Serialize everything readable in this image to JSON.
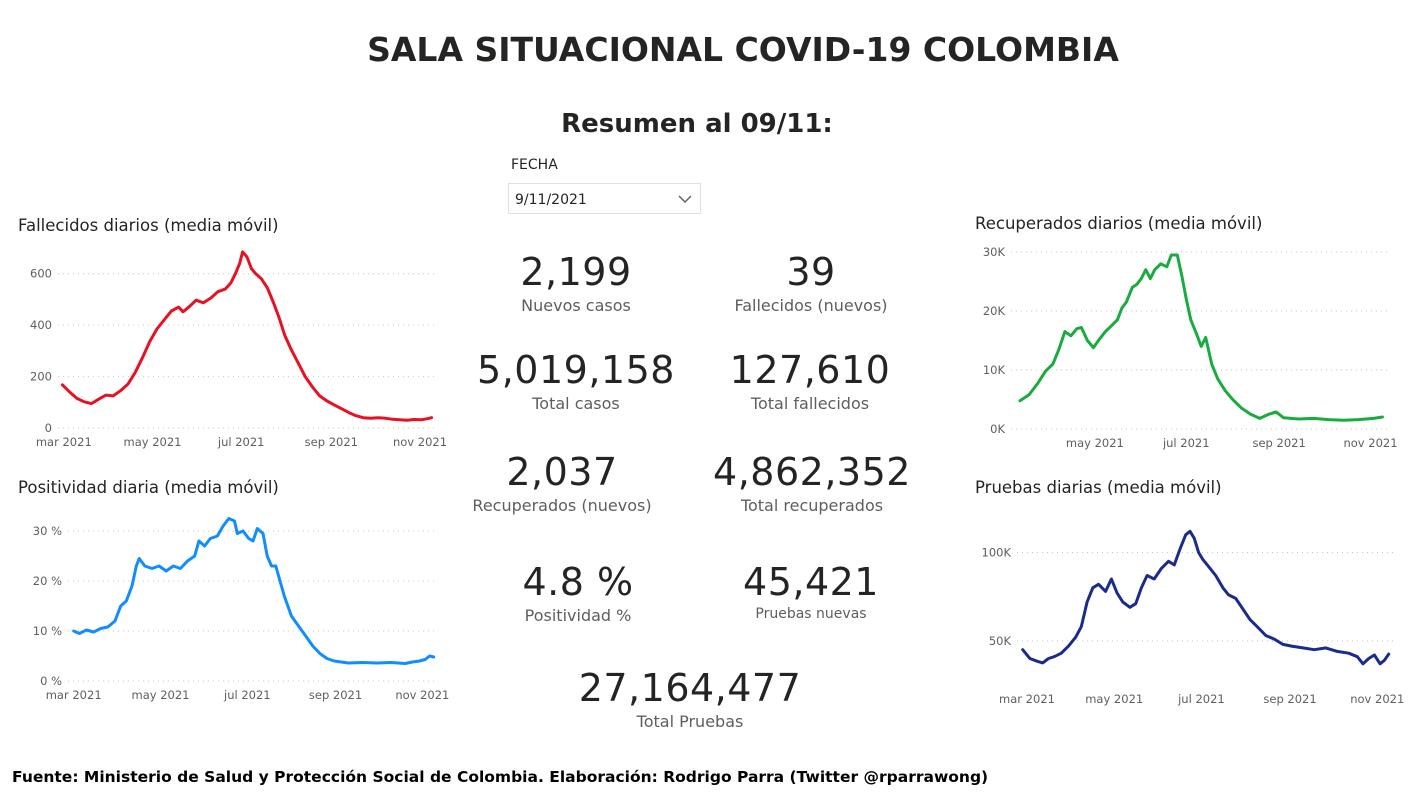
{
  "header": {
    "title": "SALA SITUACIONAL COVID-19 COLOMBIA",
    "subtitle": "Resumen al 09/11:"
  },
  "filter": {
    "label": "FECHA",
    "value": "9/11/2021",
    "icon": "chevron-down-icon"
  },
  "kpis": {
    "nuevos_casos": {
      "value": "2,199",
      "label": "Nuevos casos"
    },
    "fallecidos_nuevos": {
      "value": "39",
      "label": "Fallecidos (nuevos)"
    },
    "total_casos": {
      "value": "5,019,158",
      "label": "Total casos"
    },
    "total_fallecidos": {
      "value": "127,610",
      "label": "Total fallecidos"
    },
    "recuperados_nuevos": {
      "value": "2,037",
      "label": "Recuperados (nuevos)"
    },
    "total_recuperados": {
      "value": "4,862,352",
      "label": "Total recuperados"
    },
    "positividad": {
      "value": "4.8 %",
      "label": "Positividad %"
    },
    "pruebas_nuevas": {
      "value": "45,421",
      "label": "Pruebas nuevas"
    },
    "total_pruebas": {
      "value": "27,164,477",
      "label": "Total Pruebas"
    }
  },
  "footer": {
    "source": "Fuente: Ministerio de Salud y Protección Social de Colombia. Elaboración: Rodrigo Parra (Twitter @rparrawong)"
  },
  "chart_data": [
    {
      "id": "fallecidos",
      "type": "line",
      "title": "Fallecidos diarios (media móvil)",
      "color": "#e81123",
      "xlabel": "",
      "ylabel": "",
      "xlim": [
        "2021-02-25",
        "2021-11-12"
      ],
      "ylim": [
        0,
        700
      ],
      "y_ticks": [
        0,
        200,
        400,
        600
      ],
      "y_tick_labels": [
        "0",
        "200",
        "400",
        "600"
      ],
      "x_ticks": [
        "2021-03-01",
        "2021-05-01",
        "2021-07-01",
        "2021-09-01",
        "2021-11-01"
      ],
      "x_tick_labels": [
        "mar 2021",
        "may 2021",
        "jul 2021",
        "sep 2021",
        "nov 2021"
      ],
      "grid": true,
      "points": [
        [
          "2021-02-28",
          168
        ],
        [
          "2021-03-05",
          140
        ],
        [
          "2021-03-10",
          115
        ],
        [
          "2021-03-15",
          102
        ],
        [
          "2021-03-20",
          95
        ],
        [
          "2021-03-25",
          112
        ],
        [
          "2021-03-30",
          128
        ],
        [
          "2021-04-04",
          125
        ],
        [
          "2021-04-09",
          145
        ],
        [
          "2021-04-14",
          170
        ],
        [
          "2021-04-19",
          215
        ],
        [
          "2021-04-24",
          272
        ],
        [
          "2021-04-29",
          335
        ],
        [
          "2021-05-04",
          385
        ],
        [
          "2021-05-09",
          420
        ],
        [
          "2021-05-14",
          455
        ],
        [
          "2021-05-19",
          470
        ],
        [
          "2021-05-22",
          452
        ],
        [
          "2021-05-26",
          470
        ],
        [
          "2021-05-31",
          497
        ],
        [
          "2021-06-05",
          487
        ],
        [
          "2021-06-10",
          505
        ],
        [
          "2021-06-15",
          530
        ],
        [
          "2021-06-20",
          540
        ],
        [
          "2021-06-24",
          565
        ],
        [
          "2021-06-27",
          600
        ],
        [
          "2021-06-30",
          640
        ],
        [
          "2021-07-02",
          685
        ],
        [
          "2021-07-05",
          665
        ],
        [
          "2021-07-08",
          620
        ],
        [
          "2021-07-11",
          600
        ],
        [
          "2021-07-15",
          580
        ],
        [
          "2021-07-19",
          545
        ],
        [
          "2021-07-23",
          490
        ],
        [
          "2021-07-27",
          430
        ],
        [
          "2021-07-31",
          360
        ],
        [
          "2021-08-04",
          310
        ],
        [
          "2021-08-09",
          255
        ],
        [
          "2021-08-14",
          200
        ],
        [
          "2021-08-19",
          160
        ],
        [
          "2021-08-24",
          125
        ],
        [
          "2021-08-29",
          105
        ],
        [
          "2021-09-03",
          90
        ],
        [
          "2021-09-08",
          75
        ],
        [
          "2021-09-13",
          60
        ],
        [
          "2021-09-18",
          48
        ],
        [
          "2021-09-23",
          40
        ],
        [
          "2021-09-28",
          38
        ],
        [
          "2021-10-03",
          40
        ],
        [
          "2021-10-08",
          38
        ],
        [
          "2021-10-13",
          34
        ],
        [
          "2021-10-18",
          32
        ],
        [
          "2021-10-23",
          30
        ],
        [
          "2021-10-28",
          33
        ],
        [
          "2021-11-02",
          32
        ],
        [
          "2021-11-06",
          36
        ],
        [
          "2021-11-09",
          40
        ]
      ]
    },
    {
      "id": "positividad",
      "type": "line",
      "title": "Positividad diaria (media móvil)",
      "color": "#118dff",
      "xlabel": "",
      "ylabel": "",
      "xlim": [
        "2021-02-25",
        "2021-11-12"
      ],
      "ylim": [
        0,
        33
      ],
      "y_ticks": [
        0,
        10,
        20,
        30
      ],
      "y_tick_labels": [
        "0 %",
        "10 %",
        "20 %",
        "30 %"
      ],
      "x_ticks": [
        "2021-03-01",
        "2021-05-01",
        "2021-07-01",
        "2021-09-01",
        "2021-11-01"
      ],
      "x_tick_labels": [
        "mar 2021",
        "may 2021",
        "jul 2021",
        "sep 2021",
        "nov 2021"
      ],
      "grid": true,
      "points": [
        [
          "2021-03-01",
          10.0
        ],
        [
          "2021-03-05",
          9.5
        ],
        [
          "2021-03-10",
          10.2
        ],
        [
          "2021-03-15",
          9.8
        ],
        [
          "2021-03-20",
          10.5
        ],
        [
          "2021-03-25",
          10.8
        ],
        [
          "2021-03-30",
          12.0
        ],
        [
          "2021-04-03",
          15.0
        ],
        [
          "2021-04-07",
          16.0
        ],
        [
          "2021-04-11",
          19.0
        ],
        [
          "2021-04-14",
          23.0
        ],
        [
          "2021-04-16",
          24.5
        ],
        [
          "2021-04-20",
          23.0
        ],
        [
          "2021-04-25",
          22.5
        ],
        [
          "2021-04-30",
          23.0
        ],
        [
          "2021-05-05",
          22.0
        ],
        [
          "2021-05-10",
          23.0
        ],
        [
          "2021-05-15",
          22.5
        ],
        [
          "2021-05-20",
          24.0
        ],
        [
          "2021-05-25",
          25.0
        ],
        [
          "2021-05-28",
          28.0
        ],
        [
          "2021-06-01",
          27.0
        ],
        [
          "2021-06-05",
          28.5
        ],
        [
          "2021-06-10",
          29.0
        ],
        [
          "2021-06-14",
          31.0
        ],
        [
          "2021-06-18",
          32.5
        ],
        [
          "2021-06-22",
          32.0
        ],
        [
          "2021-06-24",
          29.5
        ],
        [
          "2021-06-28",
          30.0
        ],
        [
          "2021-07-02",
          28.5
        ],
        [
          "2021-07-05",
          28.0
        ],
        [
          "2021-07-08",
          30.5
        ],
        [
          "2021-07-12",
          29.5
        ],
        [
          "2021-07-15",
          25.0
        ],
        [
          "2021-07-18",
          23.0
        ],
        [
          "2021-07-21",
          23.0
        ],
        [
          "2021-07-24",
          20.0
        ],
        [
          "2021-07-27",
          17.0
        ],
        [
          "2021-08-01",
          13.0
        ],
        [
          "2021-08-06",
          11.0
        ],
        [
          "2021-08-11",
          9.0
        ],
        [
          "2021-08-16",
          7.0
        ],
        [
          "2021-08-21",
          5.5
        ],
        [
          "2021-08-26",
          4.5
        ],
        [
          "2021-08-31",
          4.0
        ],
        [
          "2021-09-05",
          3.8
        ],
        [
          "2021-09-10",
          3.6
        ],
        [
          "2021-09-20",
          3.7
        ],
        [
          "2021-09-30",
          3.6
        ],
        [
          "2021-10-10",
          3.7
        ],
        [
          "2021-10-20",
          3.5
        ],
        [
          "2021-10-25",
          3.8
        ],
        [
          "2021-10-30",
          4.0
        ],
        [
          "2021-11-03",
          4.3
        ],
        [
          "2021-11-06",
          5.0
        ],
        [
          "2021-11-09",
          4.8
        ]
      ]
    },
    {
      "id": "recuperados",
      "type": "line",
      "title": "Recuperados diarios (media móvil)",
      "color": "#1aab40",
      "xlabel": "",
      "ylabel": "",
      "xlim": [
        "2021-03-06",
        "2021-11-12"
      ],
      "ylim": [
        0,
        30000
      ],
      "y_ticks": [
        0,
        10000,
        20000,
        30000
      ],
      "y_tick_labels": [
        "0K",
        "10K",
        "20K",
        "30K"
      ],
      "x_ticks": [
        "2021-05-01",
        "2021-07-01",
        "2021-09-01",
        "2021-11-01"
      ],
      "x_tick_labels": [
        "may 2021",
        "jul 2021",
        "sep 2021",
        "nov 2021"
      ],
      "grid": true,
      "points": [
        [
          "2021-03-12",
          4800
        ],
        [
          "2021-03-18",
          5800
        ],
        [
          "2021-03-24",
          7800
        ],
        [
          "2021-03-29",
          9800
        ],
        [
          "2021-04-03",
          11000
        ],
        [
          "2021-04-07",
          13500
        ],
        [
          "2021-04-11",
          16500
        ],
        [
          "2021-04-15",
          15800
        ],
        [
          "2021-04-19",
          17000
        ],
        [
          "2021-04-22",
          17200
        ],
        [
          "2021-04-26",
          15000
        ],
        [
          "2021-04-30",
          13800
        ],
        [
          "2021-05-04",
          15200
        ],
        [
          "2021-05-08",
          16500
        ],
        [
          "2021-05-12",
          17500
        ],
        [
          "2021-05-16",
          18500
        ],
        [
          "2021-05-19",
          20500
        ],
        [
          "2021-05-22",
          21500
        ],
        [
          "2021-05-26",
          24000
        ],
        [
          "2021-05-29",
          24500
        ],
        [
          "2021-06-01",
          25500
        ],
        [
          "2021-06-04",
          27000
        ],
        [
          "2021-06-07",
          25500
        ],
        [
          "2021-06-10",
          27000
        ],
        [
          "2021-06-14",
          28000
        ],
        [
          "2021-06-18",
          27500
        ],
        [
          "2021-06-21",
          29500
        ],
        [
          "2021-06-25",
          29500
        ],
        [
          "2021-06-28",
          26000
        ],
        [
          "2021-07-01",
          22000
        ],
        [
          "2021-07-04",
          18500
        ],
        [
          "2021-07-08",
          16000
        ],
        [
          "2021-07-11",
          14000
        ],
        [
          "2021-07-14",
          15500
        ],
        [
          "2021-07-18",
          11000
        ],
        [
          "2021-07-22",
          8500
        ],
        [
          "2021-07-27",
          6500
        ],
        [
          "2021-08-01",
          5000
        ],
        [
          "2021-08-07",
          3500
        ],
        [
          "2021-08-13",
          2500
        ],
        [
          "2021-08-19",
          1800
        ],
        [
          "2021-08-25",
          2500
        ],
        [
          "2021-08-30",
          2900
        ],
        [
          "2021-09-04",
          1900
        ],
        [
          "2021-09-14",
          1700
        ],
        [
          "2021-09-24",
          1800
        ],
        [
          "2021-10-04",
          1600
        ],
        [
          "2021-10-14",
          1500
        ],
        [
          "2021-10-24",
          1600
        ],
        [
          "2021-11-03",
          1800
        ],
        [
          "2021-11-09",
          2037
        ]
      ]
    },
    {
      "id": "pruebas",
      "type": "line",
      "title": "Pruebas diarias (media móvil)",
      "color": "#1a2b8c",
      "xlabel": "",
      "ylabel": "",
      "xlim": [
        "2021-02-22",
        "2021-11-12"
      ],
      "ylim": [
        25000,
        115000
      ],
      "y_ticks": [
        50000,
        100000
      ],
      "y_tick_labels": [
        "50K",
        "100K"
      ],
      "x_ticks": [
        "2021-03-01",
        "2021-05-01",
        "2021-07-01",
        "2021-09-01",
        "2021-11-01"
      ],
      "x_tick_labels": [
        "mar 2021",
        "may 2021",
        "jul 2021",
        "sep 2021",
        "nov 2021"
      ],
      "grid": true,
      "points": [
        [
          "2021-02-26",
          45000
        ],
        [
          "2021-03-03",
          40000
        ],
        [
          "2021-03-08",
          38500
        ],
        [
          "2021-03-12",
          37500
        ],
        [
          "2021-03-16",
          40000
        ],
        [
          "2021-03-20",
          41000
        ],
        [
          "2021-03-25",
          43000
        ],
        [
          "2021-03-30",
          47000
        ],
        [
          "2021-04-04",
          52000
        ],
        [
          "2021-04-08",
          58000
        ],
        [
          "2021-04-12",
          72000
        ],
        [
          "2021-04-16",
          80000
        ],
        [
          "2021-04-20",
          82000
        ],
        [
          "2021-04-25",
          78000
        ],
        [
          "2021-04-29",
          85000
        ],
        [
          "2021-05-03",
          77000
        ],
        [
          "2021-05-07",
          72000
        ],
        [
          "2021-05-12",
          69000
        ],
        [
          "2021-05-16",
          71000
        ],
        [
          "2021-05-20",
          80000
        ],
        [
          "2021-05-24",
          87000
        ],
        [
          "2021-05-29",
          85000
        ],
        [
          "2021-06-03",
          91000
        ],
        [
          "2021-06-08",
          95000
        ],
        [
          "2021-06-12",
          93000
        ],
        [
          "2021-06-16",
          102000
        ],
        [
          "2021-06-20",
          110000
        ],
        [
          "2021-06-23",
          112000
        ],
        [
          "2021-06-26",
          108000
        ],
        [
          "2021-06-29",
          100000
        ],
        [
          "2021-07-02",
          96000
        ],
        [
          "2021-07-06",
          92000
        ],
        [
          "2021-07-11",
          87000
        ],
        [
          "2021-07-16",
          80000
        ],
        [
          "2021-07-20",
          76000
        ],
        [
          "2021-07-25",
          74000
        ],
        [
          "2021-07-30",
          68000
        ],
        [
          "2021-08-04",
          62000
        ],
        [
          "2021-08-09",
          58000
        ],
        [
          "2021-08-15",
          53000
        ],
        [
          "2021-08-21",
          51000
        ],
        [
          "2021-08-27",
          48000
        ],
        [
          "2021-09-02",
          47000
        ],
        [
          "2021-09-10",
          46000
        ],
        [
          "2021-09-18",
          45000
        ],
        [
          "2021-09-26",
          46000
        ],
        [
          "2021-10-04",
          44000
        ],
        [
          "2021-10-12",
          43000
        ],
        [
          "2021-10-18",
          41000
        ],
        [
          "2021-10-22",
          37000
        ],
        [
          "2021-10-26",
          40000
        ],
        [
          "2021-10-30",
          42000
        ],
        [
          "2021-11-03",
          37000
        ],
        [
          "2021-11-06",
          39000
        ],
        [
          "2021-11-09",
          42500
        ]
      ]
    }
  ]
}
